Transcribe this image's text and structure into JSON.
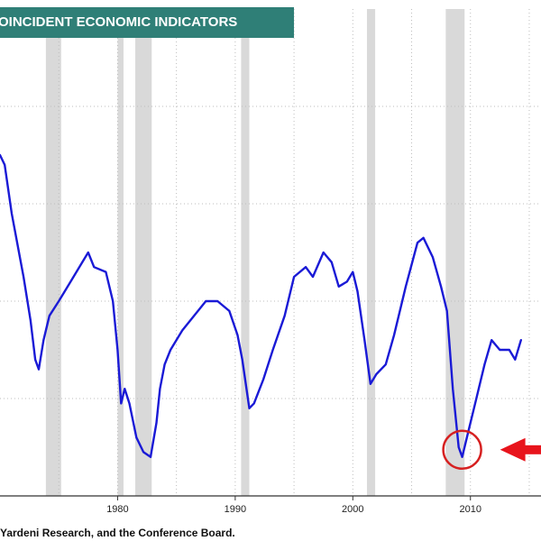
{
  "chart_data": {
    "type": "line",
    "title": "OINCIDENT ECONOMIC INDICATORS",
    "xlabel": "",
    "ylabel": "",
    "x_tick_labels": [
      "1980",
      "1990",
      "2000",
      "2010"
    ],
    "xlim": [
      1970,
      2016
    ],
    "ylim": [
      0,
      100
    ],
    "grid": true,
    "recession_bands": [
      [
        1973.9,
        1975.2
      ],
      [
        1980.0,
        1980.5
      ],
      [
        1981.5,
        1982.9
      ],
      [
        1990.5,
        1991.2
      ],
      [
        2001.2,
        2001.9
      ],
      [
        2007.9,
        2009.5
      ]
    ],
    "series": [
      {
        "name": "",
        "color": "#1a1ad6",
        "points": [
          [
            1970.0,
            70
          ],
          [
            1970.4,
            68
          ],
          [
            1971.0,
            58
          ],
          [
            1972.0,
            45
          ],
          [
            1972.6,
            36
          ],
          [
            1973.0,
            28
          ],
          [
            1973.3,
            26
          ],
          [
            1973.7,
            32
          ],
          [
            1974.2,
            37
          ],
          [
            1975.0,
            40
          ],
          [
            1976.0,
            44
          ],
          [
            1977.0,
            48
          ],
          [
            1977.5,
            50
          ],
          [
            1978.0,
            47
          ],
          [
            1979.0,
            46
          ],
          [
            1979.6,
            40
          ],
          [
            1980.0,
            30
          ],
          [
            1980.3,
            19
          ],
          [
            1980.6,
            22
          ],
          [
            1981.0,
            19
          ],
          [
            1981.6,
            12
          ],
          [
            1982.2,
            9
          ],
          [
            1982.8,
            8
          ],
          [
            1983.3,
            15
          ],
          [
            1983.6,
            22
          ],
          [
            1984.0,
            27
          ],
          [
            1984.5,
            30
          ],
          [
            1985.5,
            34
          ],
          [
            1986.5,
            37
          ],
          [
            1987.5,
            40
          ],
          [
            1988.5,
            40
          ],
          [
            1989.5,
            38
          ],
          [
            1990.2,
            33
          ],
          [
            1990.6,
            28
          ],
          [
            1991.2,
            18
          ],
          [
            1991.6,
            19
          ],
          [
            1992.4,
            24
          ],
          [
            1993.2,
            30
          ],
          [
            1994.2,
            37
          ],
          [
            1995.0,
            45
          ],
          [
            1996.0,
            47
          ],
          [
            1996.6,
            45
          ],
          [
            1997.5,
            50
          ],
          [
            1998.2,
            48
          ],
          [
            1998.8,
            43
          ],
          [
            1999.5,
            44
          ],
          [
            2000.0,
            46
          ],
          [
            2000.4,
            42
          ],
          [
            2001.0,
            32
          ],
          [
            2001.5,
            23
          ],
          [
            2002.0,
            25
          ],
          [
            2002.8,
            27
          ],
          [
            2003.5,
            33
          ],
          [
            2004.5,
            43
          ],
          [
            2005.5,
            52
          ],
          [
            2006.0,
            53
          ],
          [
            2006.8,
            49
          ],
          [
            2007.5,
            43
          ],
          [
            2008.0,
            38
          ],
          [
            2008.5,
            22
          ],
          [
            2009.0,
            10
          ],
          [
            2009.3,
            8
          ],
          [
            2009.8,
            13
          ],
          [
            2010.5,
            20
          ],
          [
            2011.2,
            27
          ],
          [
            2011.8,
            32
          ],
          [
            2012.5,
            30
          ],
          [
            2013.3,
            30
          ],
          [
            2013.8,
            28
          ],
          [
            2014.3,
            32
          ]
        ]
      }
    ],
    "annotations": [
      {
        "type": "circle",
        "at": [
          2009.3,
          8
        ],
        "color": "#d62020"
      },
      {
        "type": "arrow",
        "pointing": "left",
        "color": "#e8141c"
      }
    ]
  },
  "footer": {
    "source": "Yardeni Research, and the Conference Board."
  }
}
